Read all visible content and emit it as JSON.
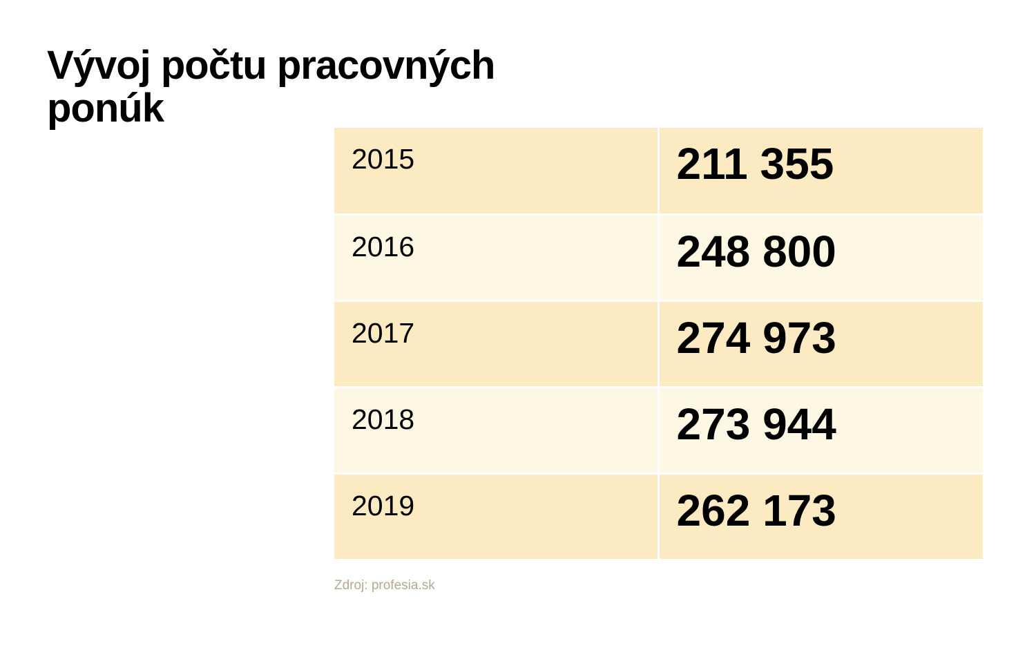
{
  "header": {
    "title": "Vývoj počtu pracovných ponúk"
  },
  "table": {
    "rows": [
      [
        "2015",
        "211 355"
      ],
      [
        "2016",
        "248 800"
      ],
      [
        "2017",
        "274 973"
      ],
      [
        "2018",
        "273 944"
      ],
      [
        "2019",
        "262 173"
      ]
    ]
  },
  "footer": {
    "source": "Zdroj: profesia.sk"
  }
}
